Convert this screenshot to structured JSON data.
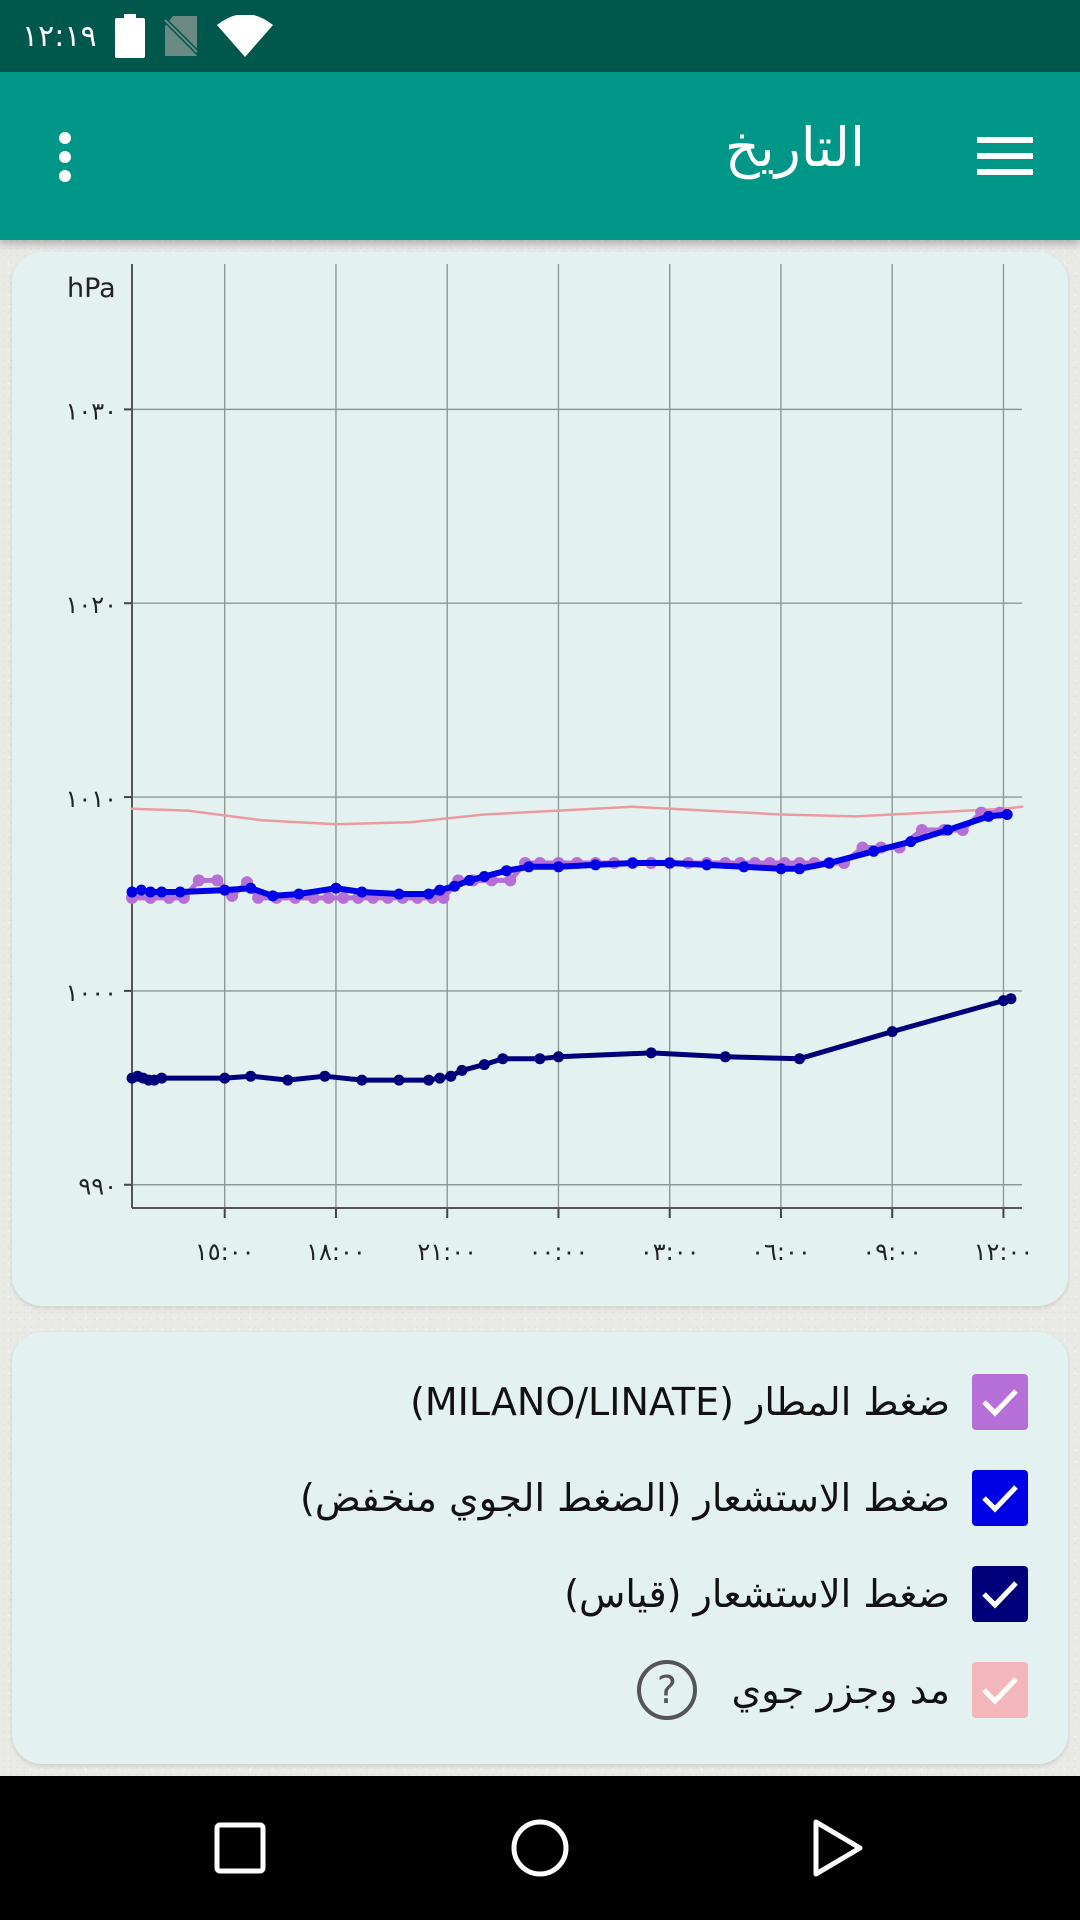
{
  "status_bar": {
    "time": "١٢:١٩",
    "icons": [
      "battery-icon",
      "no-sim-icon",
      "wifi-icon"
    ]
  },
  "app_bar": {
    "title": "التاريخ",
    "menu_icon": "hamburger-menu-icon",
    "overflow_icon": "more-vertical-icon"
  },
  "chart_data": {
    "type": "line",
    "ylabel": "hPa",
    "ylim": [
      988.8,
      1037.5
    ],
    "yticks": [
      990,
      1000,
      1010,
      1020,
      1030
    ],
    "ytick_labels": [
      "٩٩٠",
      "١٠٠٠",
      "١٠١٠",
      "١٠٢٠",
      "١٠٣٠"
    ],
    "xlim": [
      12.5,
      36.5
    ],
    "xticks": [
      15,
      18,
      21,
      24,
      27,
      30,
      33,
      36
    ],
    "xtick_labels": [
      "١٥:٠٠",
      "١٨:٠٠",
      "٢١:٠٠",
      "٠٠:٠٠",
      "٠٣:٠٠",
      "٠٦:٠٠",
      "٠٩:٠٠",
      "١٢:٠٠"
    ],
    "grid": true,
    "series": [
      {
        "name": "ضغط المطار (MILANO/LINATE)",
        "color": "#b56fd6",
        "points": [
          [
            12.5,
            1004.8
          ],
          [
            13.0,
            1004.8
          ],
          [
            13.5,
            1004.8
          ],
          [
            13.9,
            1004.8
          ],
          [
            14.3,
            1005.7
          ],
          [
            14.8,
            1005.7
          ],
          [
            15.2,
            1004.9
          ],
          [
            15.6,
            1005.6
          ],
          [
            15.9,
            1004.8
          ],
          [
            16.4,
            1004.8
          ],
          [
            16.9,
            1004.8
          ],
          [
            17.4,
            1004.8
          ],
          [
            17.8,
            1004.8
          ],
          [
            18.2,
            1004.8
          ],
          [
            18.6,
            1004.8
          ],
          [
            19.0,
            1004.8
          ],
          [
            19.4,
            1004.8
          ],
          [
            19.8,
            1004.8
          ],
          [
            20.2,
            1004.8
          ],
          [
            20.6,
            1004.8
          ],
          [
            20.9,
            1004.8
          ],
          [
            21.3,
            1005.7
          ],
          [
            21.7,
            1005.7
          ],
          [
            22.2,
            1005.7
          ],
          [
            22.7,
            1005.7
          ],
          [
            23.1,
            1006.6
          ],
          [
            23.5,
            1006.6
          ],
          [
            24.0,
            1006.6
          ],
          [
            24.5,
            1006.6
          ],
          [
            25.0,
            1006.6
          ],
          [
            25.5,
            1006.6
          ],
          [
            26.0,
            1006.6
          ],
          [
            26.5,
            1006.6
          ],
          [
            27.0,
            1006.6
          ],
          [
            27.5,
            1006.6
          ],
          [
            28.0,
            1006.6
          ],
          [
            28.5,
            1006.6
          ],
          [
            28.9,
            1006.6
          ],
          [
            29.3,
            1006.6
          ],
          [
            29.7,
            1006.6
          ],
          [
            30.1,
            1006.6
          ],
          [
            30.5,
            1006.6
          ],
          [
            30.9,
            1006.6
          ],
          [
            31.3,
            1006.6
          ],
          [
            31.7,
            1006.6
          ],
          [
            32.2,
            1007.4
          ],
          [
            32.7,
            1007.4
          ],
          [
            33.2,
            1007.4
          ],
          [
            33.8,
            1008.3
          ],
          [
            34.4,
            1008.3
          ],
          [
            34.9,
            1008.3
          ],
          [
            35.4,
            1009.2
          ],
          [
            35.9,
            1009.2
          ]
        ]
      },
      {
        "name": "ضغط الاستشعار (الضغط الجوي منخفض)",
        "color": "#0000e6",
        "points": [
          [
            12.5,
            1005.1
          ],
          [
            12.75,
            1005.2
          ],
          [
            13.0,
            1005.1
          ],
          [
            13.3,
            1005.1
          ],
          [
            13.8,
            1005.1
          ],
          [
            15.0,
            1005.2
          ],
          [
            15.7,
            1005.3
          ],
          [
            16.3,
            1004.9
          ],
          [
            17.0,
            1005.0
          ],
          [
            18.0,
            1005.3
          ],
          [
            18.7,
            1005.1
          ],
          [
            19.7,
            1005.0
          ],
          [
            20.5,
            1005.0
          ],
          [
            20.8,
            1005.2
          ],
          [
            21.2,
            1005.4
          ],
          [
            21.6,
            1005.7
          ],
          [
            22.0,
            1005.9
          ],
          [
            22.6,
            1006.2
          ],
          [
            23.2,
            1006.4
          ],
          [
            24.0,
            1006.4
          ],
          [
            25.0,
            1006.5
          ],
          [
            26.0,
            1006.6
          ],
          [
            27.0,
            1006.6
          ],
          [
            28.0,
            1006.5
          ],
          [
            29.0,
            1006.4
          ],
          [
            30.0,
            1006.3
          ],
          [
            30.5,
            1006.3
          ],
          [
            31.3,
            1006.6
          ],
          [
            32.5,
            1007.2
          ],
          [
            33.5,
            1007.7
          ],
          [
            34.5,
            1008.3
          ],
          [
            35.6,
            1009.0
          ],
          [
            36.1,
            1009.1
          ]
        ]
      },
      {
        "name": "ضغط الاستشعار (قياس)",
        "color": "#00007a",
        "points": [
          [
            12.5,
            995.5
          ],
          [
            12.65,
            995.6
          ],
          [
            12.8,
            995.5
          ],
          [
            12.95,
            995.4
          ],
          [
            13.1,
            995.4
          ],
          [
            13.3,
            995.5
          ],
          [
            15.0,
            995.5
          ],
          [
            15.7,
            995.6
          ],
          [
            16.7,
            995.4
          ],
          [
            17.7,
            995.6
          ],
          [
            18.7,
            995.4
          ],
          [
            19.7,
            995.4
          ],
          [
            20.5,
            995.4
          ],
          [
            20.8,
            995.5
          ],
          [
            21.1,
            995.6
          ],
          [
            21.4,
            995.9
          ],
          [
            22.0,
            996.2
          ],
          [
            22.5,
            996.5
          ],
          [
            23.5,
            996.5
          ],
          [
            24.0,
            996.6
          ],
          [
            26.5,
            996.8
          ],
          [
            28.5,
            996.6
          ],
          [
            30.5,
            996.5
          ],
          [
            33.0,
            997.9
          ],
          [
            36.0,
            999.5
          ],
          [
            36.2,
            999.6
          ]
        ]
      },
      {
        "name": "مد وجزر جوي",
        "color": "#ec9aa0",
        "points": [
          [
            12.5,
            1009.4
          ],
          [
            14.0,
            1009.3
          ],
          [
            16.0,
            1008.8
          ],
          [
            18.0,
            1008.6
          ],
          [
            20.0,
            1008.7
          ],
          [
            22.0,
            1009.1
          ],
          [
            24.0,
            1009.3
          ],
          [
            26.0,
            1009.5
          ],
          [
            28.0,
            1009.3
          ],
          [
            30.0,
            1009.1
          ],
          [
            32.0,
            1009.0
          ],
          [
            34.0,
            1009.2
          ],
          [
            36.0,
            1009.4
          ],
          [
            36.5,
            1009.5
          ]
        ]
      }
    ]
  },
  "legend": {
    "items": [
      {
        "label": "ضغط المطار (MILANO/LINATE)",
        "color": "#b56fd6",
        "checked": true
      },
      {
        "label": "ضغط الاستشعار (الضغط الجوي منخفض)",
        "color": "#0000e6",
        "checked": true
      },
      {
        "label": "ضغط الاستشعار (قياس)",
        "color": "#00007a",
        "checked": true
      },
      {
        "label": "مد وجزر جوي",
        "color": "#ec9aa0",
        "checked": true,
        "help_icon": "help-circle-icon"
      }
    ]
  },
  "nav_bar": {
    "icons": [
      "recents-icon",
      "home-icon",
      "back-icon"
    ]
  }
}
